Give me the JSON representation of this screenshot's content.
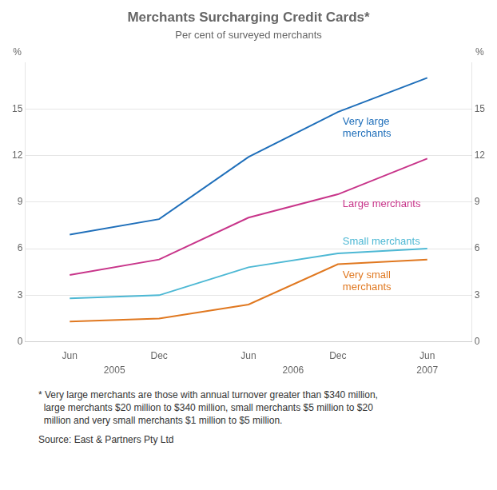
{
  "chart_data": {
    "type": "line",
    "title": "Merchants Surcharging Credit Cards*",
    "subtitle": "Per cent of surveyed merchants",
    "categories": [
      "Jun",
      "Dec",
      "Jun",
      "Dec",
      "Jun"
    ],
    "year_labels": [
      "2005",
      "2006",
      "2007"
    ],
    "series": [
      {
        "name": "Very large\nmerchants",
        "color": "#1f6fba",
        "values": [
          6.9,
          7.9,
          11.9,
          14.8,
          17.0
        ]
      },
      {
        "name": "Large merchants",
        "color": "#c8358a",
        "values": [
          4.3,
          5.3,
          8.0,
          9.5,
          11.8
        ]
      },
      {
        "name": "Small merchants",
        "color": "#4db8d4",
        "values": [
          2.8,
          3.0,
          4.8,
          5.7,
          6.0
        ]
      },
      {
        "name": "Very small\nmerchants",
        "color": "#e07820",
        "values": [
          1.3,
          1.5,
          2.4,
          5.0,
          5.3
        ]
      }
    ],
    "ylim": [
      0,
      18
    ],
    "yticks": [
      0,
      3,
      6,
      9,
      12,
      15
    ],
    "y2lim": [
      0,
      18
    ],
    "y2ticks": [
      0,
      3,
      6,
      9,
      12,
      15
    ],
    "ylabel": "%",
    "y2label": "%",
    "grid": true,
    "footnotes": [
      "* Very large merchants are those with annual turnover greater than $340 million,",
      "  large merchants $20 million to $340 million, small merchants $5 million to $20",
      "  million and very small merchants $1 million to $5 million."
    ],
    "source": "Source: East & Partners Pty Ltd"
  }
}
